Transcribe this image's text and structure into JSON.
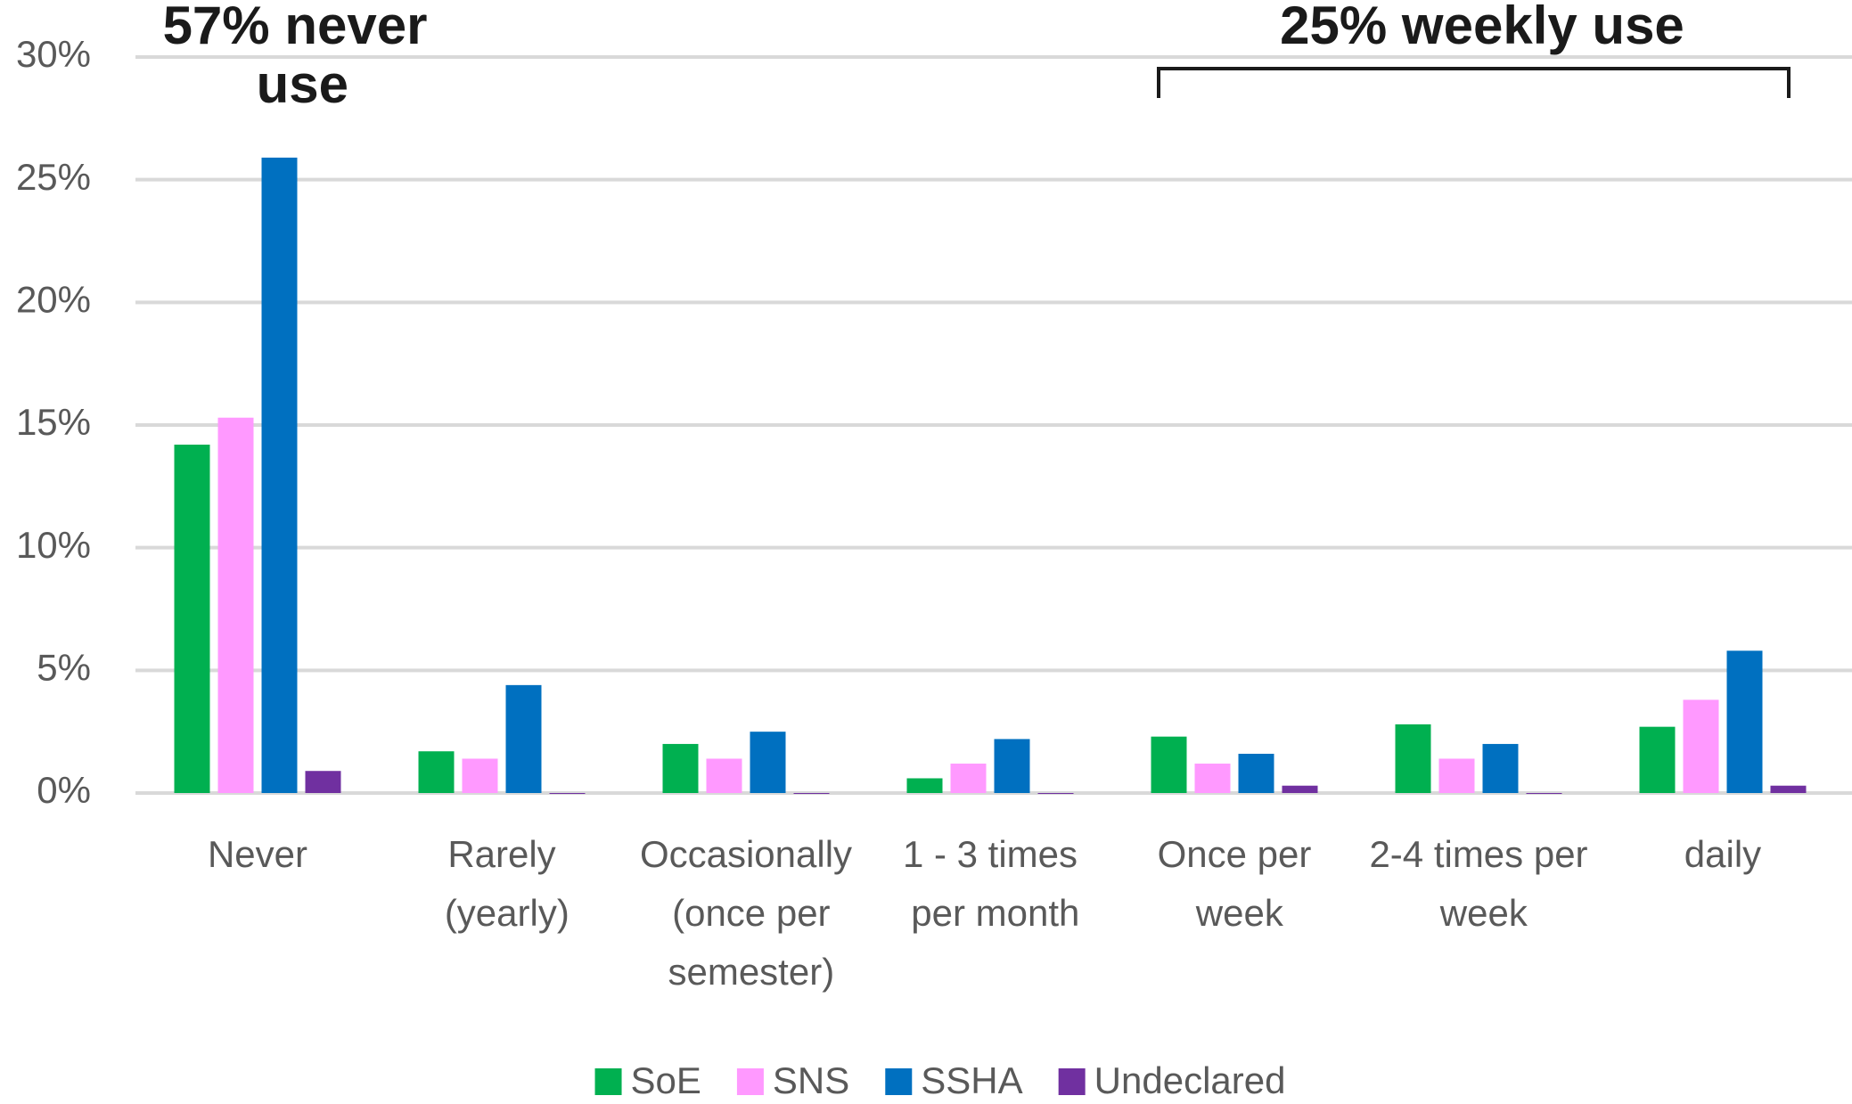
{
  "chart_data": {
    "type": "bar",
    "categories": [
      "Never",
      "Rarely (yearly)",
      "Occasionally (once per semester)",
      "1 - 3 times per month",
      "Once per week",
      "2-4 times per week",
      "daily"
    ],
    "series": [
      {
        "name": "SoE",
        "color": "#00b050",
        "values": [
          14.2,
          1.7,
          2.0,
          0.6,
          2.3,
          2.8,
          2.7
        ]
      },
      {
        "name": "SNS",
        "color": "#ff99ff",
        "values": [
          15.3,
          1.4,
          1.4,
          1.2,
          1.2,
          1.4,
          3.8
        ]
      },
      {
        "name": "SSHA",
        "color": "#0070c0",
        "values": [
          25.9,
          4.4,
          2.5,
          2.2,
          1.6,
          2.0,
          5.8
        ]
      },
      {
        "name": "Undeclared",
        "color": "#7030a0",
        "values": [
          0.9,
          0,
          0,
          0,
          0.3,
          0,
          0.3
        ]
      }
    ],
    "ylim": [
      0,
      30
    ],
    "yticks": [
      {
        "value": 0,
        "label": "0%"
      },
      {
        "value": 5,
        "label": "5%"
      },
      {
        "value": 10,
        "label": "10%"
      },
      {
        "value": 15,
        "label": "15%"
      },
      {
        "value": 20,
        "label": "20%"
      },
      {
        "value": 25,
        "label": "25%"
      },
      {
        "value": 30,
        "label": "30%"
      }
    ],
    "grid": true,
    "legend": "bottom",
    "annotations": [
      "57% never use",
      "25% weekly use"
    ]
  }
}
